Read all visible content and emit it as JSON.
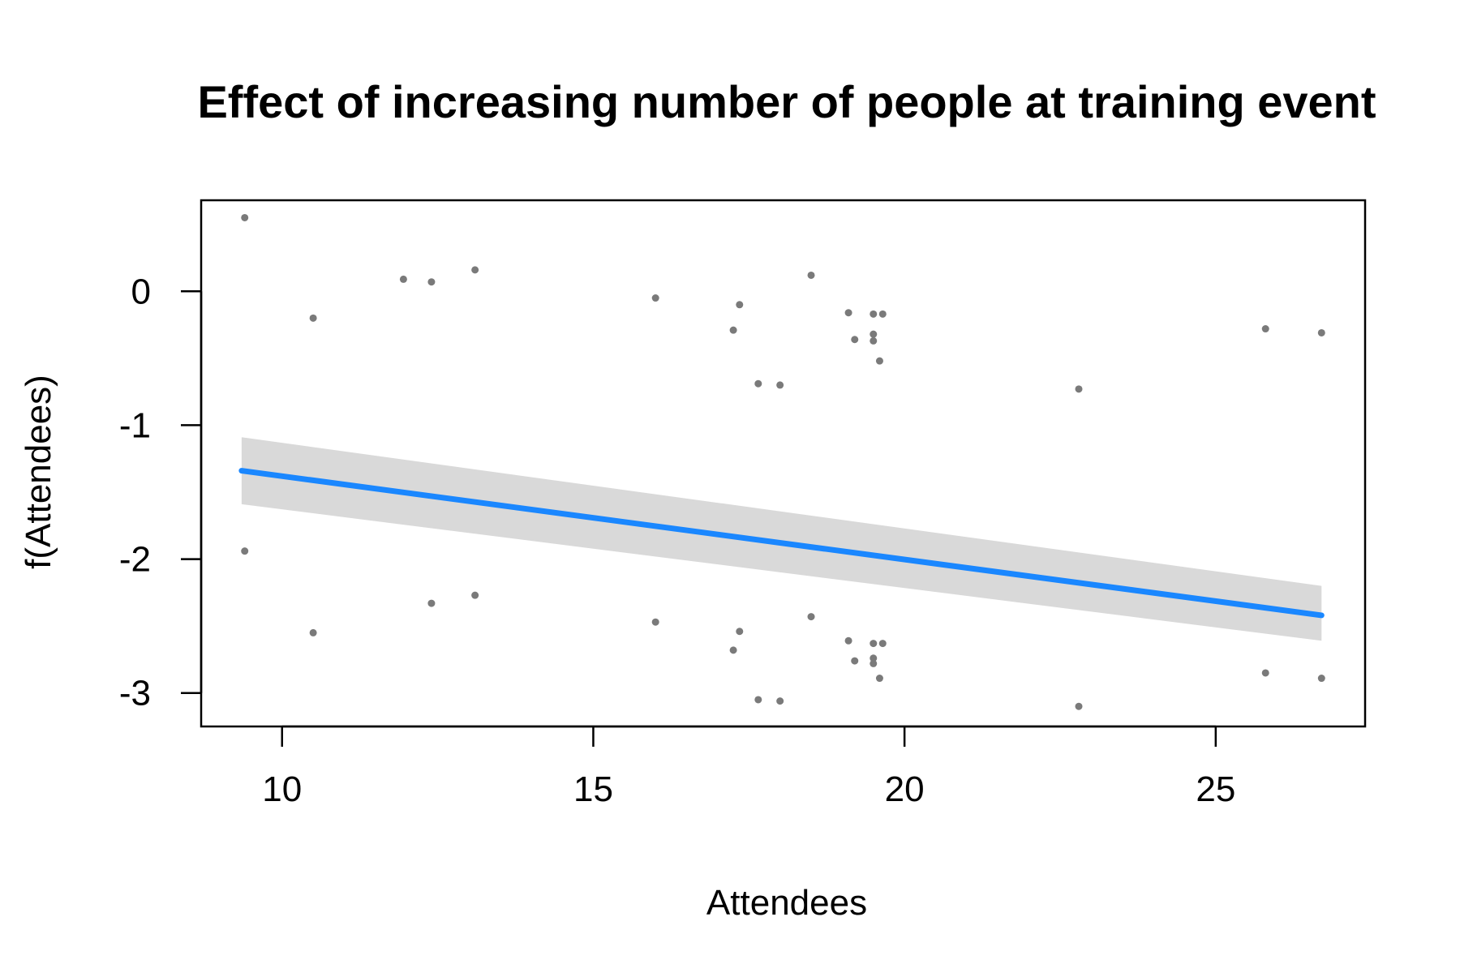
{
  "chart_data": {
    "type": "line",
    "title": "Effect of increasing number of people at training event",
    "xlabel": "Attendees",
    "ylabel": "f(Attendees)",
    "xlim": [
      8.7,
      27.4
    ],
    "ylim": [
      -3.25,
      0.68
    ],
    "xticks": [
      10,
      15,
      20,
      25
    ],
    "yticks": [
      0,
      -1,
      -2,
      -3
    ],
    "grid": false,
    "legend": "none",
    "colors": {
      "fit_line": "#1a87ff",
      "confidence_band": "#d9d9d9",
      "points": "#7a7a7a",
      "axis": "#000000"
    },
    "series": [
      {
        "type": "line",
        "x": [
          9.35,
          26.7
        ],
        "y": [
          -1.34,
          -2.42
        ]
      },
      {
        "type": "area",
        "x": [
          9.35,
          26.7
        ],
        "y_lower": [
          -1.59,
          -2.61
        ],
        "y_upper": [
          -1.09,
          -2.2
        ]
      },
      {
        "type": "scatter",
        "x": [
          9.4,
          9.4,
          10.5,
          10.5,
          11.95,
          12.4,
          12.4,
          13.1,
          13.1,
          16.0,
          16.0,
          17.25,
          17.25,
          17.35,
          17.35,
          17.65,
          17.65,
          18.0,
          18.0,
          18.5,
          18.5,
          19.1,
          19.1,
          19.2,
          19.2,
          19.5,
          19.5,
          19.5,
          19.5,
          19.5,
          19.5,
          19.6,
          19.6,
          19.65,
          19.65,
          22.8,
          22.8,
          25.8,
          25.8,
          26.7,
          26.7
        ],
        "y": [
          0.55,
          -1.94,
          -0.2,
          -2.55,
          0.09,
          0.07,
          -2.33,
          0.16,
          -2.27,
          -0.05,
          -2.47,
          -0.29,
          -2.68,
          -0.1,
          -2.54,
          -0.69,
          -3.05,
          -0.7,
          -3.06,
          0.12,
          -2.43,
          -0.16,
          -2.61,
          -0.36,
          -2.76,
          -0.17,
          -0.32,
          -0.37,
          -2.63,
          -2.74,
          -2.78,
          -0.52,
          -2.89,
          -0.17,
          -2.63,
          -0.73,
          -3.1,
          -0.28,
          -2.85,
          -0.31,
          -2.89
        ]
      }
    ]
  }
}
